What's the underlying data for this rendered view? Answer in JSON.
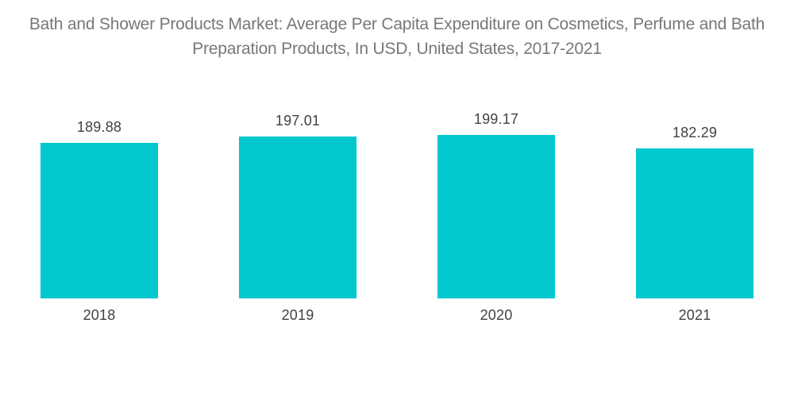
{
  "title": {
    "text": "Bath and Shower Products Market: Average Per Capita Expenditure on Cosmetics, Perfume and Bath Preparation Products, In USD, United States, 2017-2021"
  },
  "chart_data": {
    "type": "bar",
    "title": "Bath and Shower Products Market: Average Per Capita Expenditure on Cosmetics, Perfume and Bath Preparation Products, In USD, United States, 2017-2021",
    "categories": [
      "2018",
      "2019",
      "2020",
      "2021"
    ],
    "values": [
      189.88,
      197.01,
      199.17,
      182.29
    ],
    "value_labels": [
      "189.88",
      "197.01",
      "199.17",
      "182.29"
    ],
    "xlabel": "",
    "ylabel": "",
    "ylim": [
      0,
      220
    ],
    "grid": false,
    "legend": false,
    "bar_color": "#00C8CE",
    "background_color": "#FFFFFF",
    "title_color": "#75787C",
    "label_color": "#3F4246"
  }
}
